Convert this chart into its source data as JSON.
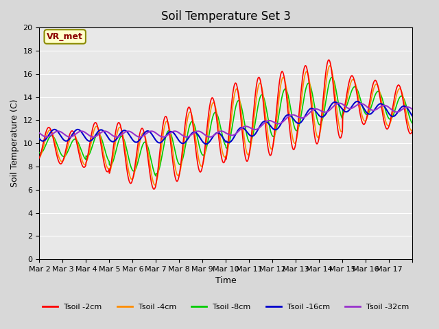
{
  "title": "Soil Temperature Set 3",
  "xlabel": "Time",
  "ylabel": "Soil Temperature (C)",
  "ylim": [
    0,
    20
  ],
  "yticks": [
    0,
    2,
    4,
    6,
    8,
    10,
    12,
    14,
    16,
    18,
    20
  ],
  "bg_color": "#e8e8e8",
  "plot_bg": "#e8e8e8",
  "annotation_text": "VR_met",
  "annotation_color": "#8b0000",
  "annotation_bg": "#ffffcc",
  "colors": {
    "2cm": "#ff0000",
    "4cm": "#ff8c00",
    "8cm": "#00cc00",
    "16cm": "#0000cc",
    "32cm": "#9932cc"
  },
  "legend_labels": [
    "Tsoil -2cm",
    "Tsoil -4cm",
    "Tsoil -8cm",
    "Tsoil -16cm",
    "Tsoil -32cm"
  ],
  "xtick_positions": [
    0,
    1,
    2,
    3,
    4,
    5,
    6,
    7,
    8,
    9,
    10,
    11,
    12,
    13,
    14,
    15,
    16
  ],
  "xtick_labels": [
    "Mar 2",
    "Mar 3",
    "Mar 4",
    "Mar 5",
    "Mar 6",
    "Mar 7",
    "Mar 8",
    "Mar 9",
    "Mar 10",
    "Mar 11",
    "Mar 12",
    "Mar 13",
    "Mar 14",
    "Mar 15",
    "Mar 16",
    "Mar 17",
    ""
  ],
  "num_days": 16
}
